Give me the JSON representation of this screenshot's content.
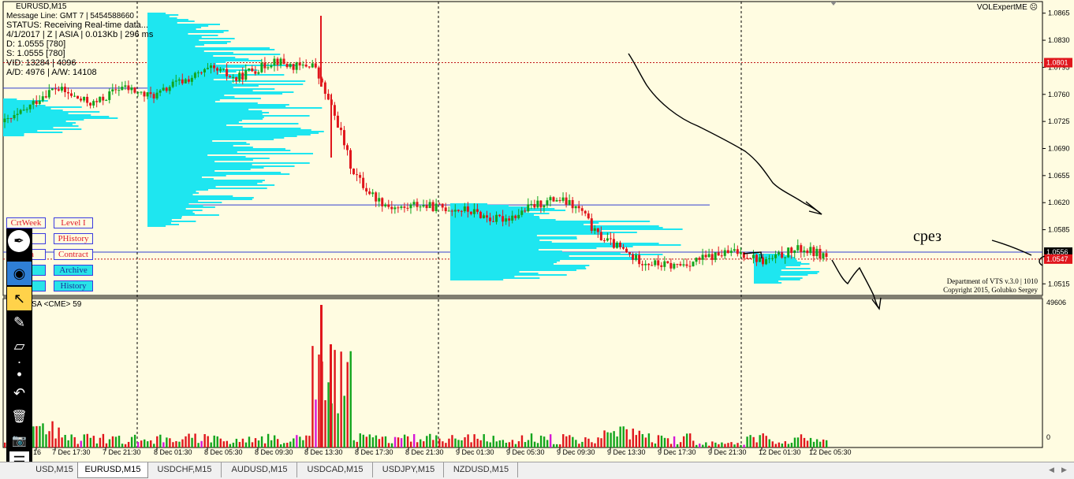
{
  "window": {
    "symbol_title": "EURUSD,M15",
    "expert_label": "VOLExpertME"
  },
  "info_lines": [
    "Message Line: GMT 7 | 5454588660",
    "STATUS:  Receiving Real-time data...",
    "4/1/2017 | Z | ASIA | 0.013Kb | 296 ms",
    "D: 1.0555  [780]",
    "S: 1.0555  [780]",
    "VID: 13284 | 4096",
    "A/D: 4976 | A/W: 14108"
  ],
  "price_axis": {
    "ticks": [
      "1.0865",
      "1.0830",
      "1.0795",
      "1.0760",
      "1.0725",
      "1.0690",
      "1.0655",
      "1.0620",
      "1.0585",
      "1.0550",
      "1.0515"
    ],
    "markers": [
      {
        "label": "1.0801",
        "color": "#e0161c"
      },
      {
        "label": "1.0556",
        "color": "#000000"
      },
      {
        "label": "1.0547",
        "color": "#e0161c"
      }
    ]
  },
  "volume_axis": {
    "top_label": "49606",
    "bottom_label": "0"
  },
  "volume_indicator_label": "SA <CME> 59",
  "time_axis": [
    "16",
    "7 Dec 17:30",
    "7 Dec 21:30",
    "8 Dec 01:30",
    "8 Dec 05:30",
    "8 Dec 09:30",
    "8 Dec 13:30",
    "8 Dec 17:30",
    "8 Dec 21:30",
    "9 Dec 01:30",
    "9 Dec 05:30",
    "9 Dec 09:30",
    "9 Dec 13:30",
    "9 Dec 17:30",
    "9 Dec 21:30",
    "12 Dec 01:30",
    "12 Dec 05:30"
  ],
  "vts_buttons": {
    "left": [
      "CrtWeek",
      "...e",
      "Asia",
      "...s",
      "...u"
    ],
    "right": [
      "Level I",
      "PHistory",
      "Contract",
      "Archive",
      "History"
    ]
  },
  "credits": {
    "line1": "Department of VTS  v.3.0 | 1010",
    "line2": "Copyright 2015, Golubko Sergey"
  },
  "annotation_text": "срез",
  "toolbar_tools": [
    {
      "icon": "pen-icon",
      "glyph": "✒"
    },
    {
      "icon": "eye-icon",
      "glyph": "◉"
    },
    {
      "icon": "pointer-icon",
      "glyph": "↖"
    },
    {
      "icon": "pencil-icon",
      "glyph": "✎"
    },
    {
      "icon": "eraser-icon",
      "glyph": "▱"
    },
    {
      "icon": "dot-small-icon",
      "glyph": "·"
    },
    {
      "icon": "dot-large-icon",
      "glyph": "•"
    },
    {
      "icon": "undo-icon",
      "glyph": "↶"
    },
    {
      "icon": "trash-icon",
      "glyph": "🗑"
    },
    {
      "icon": "camera-icon",
      "glyph": "📷"
    },
    {
      "icon": "menu-icon",
      "glyph": "☰"
    }
  ],
  "tabs": [
    "USD,M15",
    "EURUSD,M15",
    "USDCHF,M15",
    "AUDUSD,M15",
    "USDCAD,M15",
    "USDJPY,M15",
    "NZDUSD,M15"
  ],
  "active_tab": "EURUSD,M15",
  "colors": {
    "bull": "#12a51c",
    "bear": "#e0161c",
    "profile": "#1ee6f0",
    "background": "#fffce1"
  },
  "chart_data": {
    "type": "candlestick",
    "price_ylim": [
      1.05,
      1.088
    ],
    "close_path": [
      1.0724,
      1.0732,
      1.0745,
      1.076,
      1.0768,
      1.076,
      1.0752,
      1.0748,
      1.0758,
      1.077,
      1.0765,
      1.0758,
      1.076,
      1.0772,
      1.0778,
      1.0785,
      1.0792,
      1.0788,
      1.0779,
      1.079,
      1.0795,
      1.0805,
      1.0798,
      1.0795,
      1.08,
      1.076,
      1.072,
      1.0665,
      1.064,
      1.0625,
      1.0615,
      1.0612,
      1.0618,
      1.0615,
      1.0614,
      1.0612,
      1.061,
      1.0605,
      1.0598,
      1.06,
      1.0605,
      1.0615,
      1.062,
      1.0625,
      1.0618,
      1.0608,
      1.058,
      1.057,
      1.056,
      1.0548,
      1.0543,
      1.054,
      1.0538,
      1.0541,
      1.0546,
      1.055,
      1.0554,
      1.0556,
      1.0552,
      1.0544,
      1.0548,
      1.0556,
      1.056,
      1.0556,
      1.0551
    ]
  }
}
